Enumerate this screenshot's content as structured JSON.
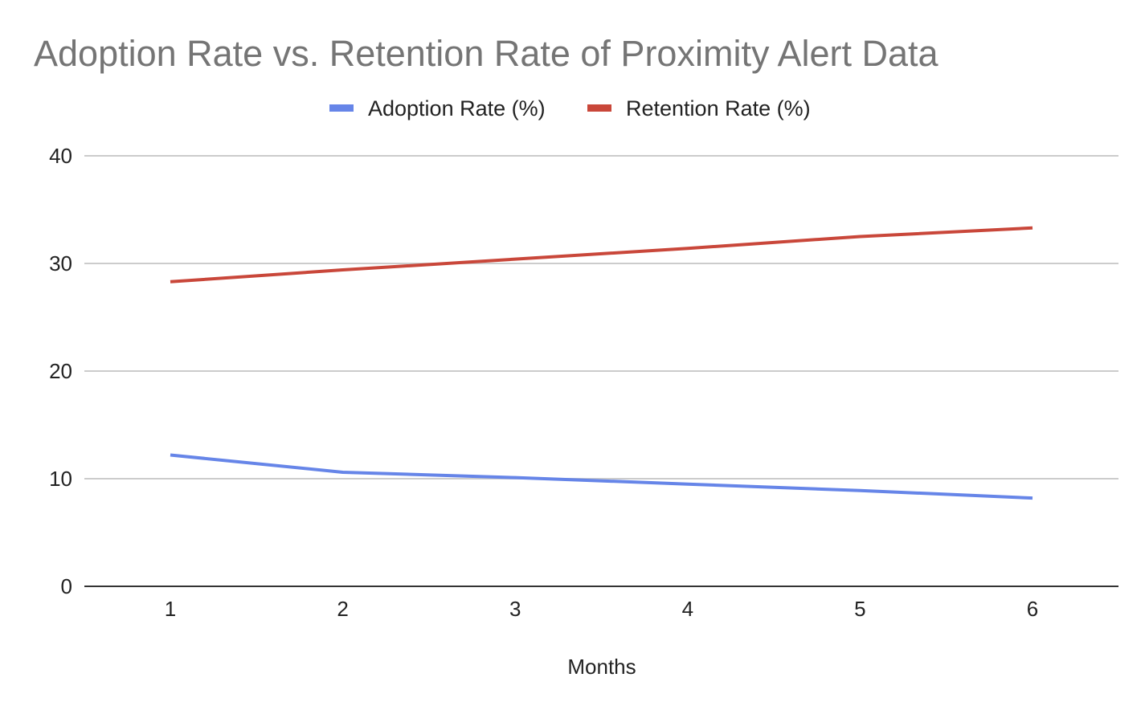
{
  "chart_data": {
    "type": "line",
    "title": "Adoption Rate vs. Retention Rate of Proximity Alert Data",
    "xlabel": "Months",
    "ylabel": "",
    "categories": [
      "1",
      "2",
      "3",
      "4",
      "5",
      "6"
    ],
    "ylim": [
      0,
      40
    ],
    "yticks": [
      0,
      10,
      20,
      30,
      40
    ],
    "grid": true,
    "legend_position": "top-center",
    "series": [
      {
        "name": "Adoption Rate (%)",
        "color": "#6685e8",
        "values": [
          12.2,
          10.6,
          10.1,
          9.5,
          8.9,
          8.2
        ]
      },
      {
        "name": "Retention Rate (%)",
        "color": "#c9473a",
        "values": [
          28.3,
          29.4,
          30.4,
          31.4,
          32.5,
          33.3
        ]
      }
    ]
  }
}
